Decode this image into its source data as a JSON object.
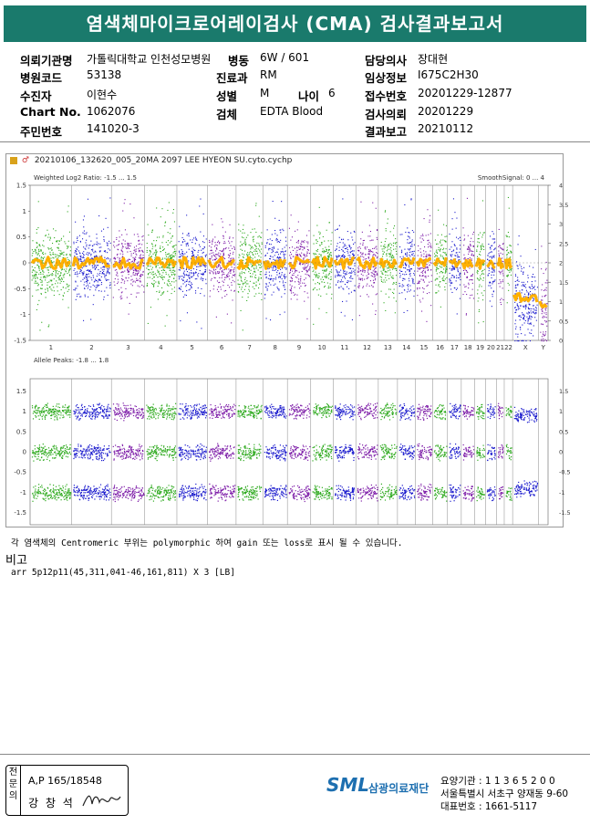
{
  "report": {
    "title": "염색체마이크로어레이검사 (CMA) 검사결과보고서"
  },
  "info": {
    "left": [
      {
        "label": "의뢰기관명",
        "value": "가톨릭대학교 인천성모병원"
      },
      {
        "label": "병원코드",
        "value": "53138"
      },
      {
        "label": "수진자",
        "value": "이현수"
      },
      {
        "label": "Chart No.",
        "value": "1062076"
      },
      {
        "label": "주민번호",
        "value": "141020-3"
      }
    ],
    "mid": [
      {
        "label": "병동",
        "value": "6W / 601"
      },
      {
        "label": "진료과",
        "value": "RM"
      },
      {
        "label": "성별",
        "value": "M"
      },
      {
        "label": "검체",
        "value": "EDTA Blood"
      }
    ],
    "age_label": "나이",
    "age_value": "6",
    "right": [
      {
        "label": "담당의사",
        "value": "장대현"
      },
      {
        "label": "임상정보",
        "value": "I675C2H30"
      },
      {
        "label": "접수번호",
        "value": "20201229-12877"
      },
      {
        "label": "검사의뢰",
        "value": "20201229"
      },
      {
        "label": "결과보고",
        "value": "20210112"
      }
    ]
  },
  "figure": {
    "filename": "20210106_132620_005_20MA 2097 LEE HYEON SU.cyto.cychp",
    "top_title": "Weighted Log2 Ratio: -1.5 ... 1.5",
    "top_right_title": "SmoothSignal: 0 ... 4",
    "top_left_ticks": [
      "1.5",
      "1",
      "0.5",
      "0",
      "-0.5",
      "-1",
      "-1.5"
    ],
    "top_right_ticks": [
      "4",
      "3.5",
      "3",
      "2.5",
      "2",
      "1.5",
      "1",
      "0.5",
      "0"
    ],
    "bottom_title": "Allele Peaks: -1.8 ... 1.8",
    "bottom_left_ticks": [
      "1.5",
      "1",
      "0.5",
      "0",
      "-0.5",
      "-1",
      "-1.5"
    ],
    "bottom_right_ticks": [
      "1.5",
      "1",
      "0.5",
      "0",
      "-0.5",
      "-1",
      "-1.5"
    ],
    "chromosomes": [
      "1",
      "2",
      "3",
      "4",
      "5",
      "6",
      "7",
      "8",
      "9",
      "10",
      "11",
      "12",
      "13",
      "14",
      "15",
      "16",
      "17",
      "18",
      "19",
      "20",
      "21",
      "22",
      "X",
      "Y"
    ],
    "chrom_widths": [
      10.0,
      9.5,
      8.0,
      7.7,
      7.3,
      6.9,
      6.4,
      5.9,
      5.6,
      5.4,
      5.4,
      5.4,
      4.6,
      4.3,
      4.1,
      3.6,
      3.3,
      3.2,
      2.6,
      2.6,
      1.9,
      2.0,
      6.2,
      2.3
    ],
    "colors": {
      "green": "#2eaa1e",
      "blue": "#1a1acd",
      "purple": "#7d1da8",
      "orange": "#ffb000"
    }
  },
  "note": "각 염색체의 Centromeric 부위는 polymorphic 하여 gain 또는 loss로 표시 될 수 있습니다.",
  "remarks_label": "비고",
  "result": "arr 5p12p11(45,311,041-46,161,811) X 3 [LB]",
  "signature": {
    "side_label": "전문의",
    "license": "A,P 165/18548",
    "name": "강 창 석"
  },
  "org": {
    "logo": "SML",
    "name": "삼광의료재단",
    "code": "요양기관 : 1 1 3 6 5 2 0 0",
    "address": "서울특별시 서초구 양재동 9-60",
    "phone": "대표번호 : 1661-5117"
  }
}
